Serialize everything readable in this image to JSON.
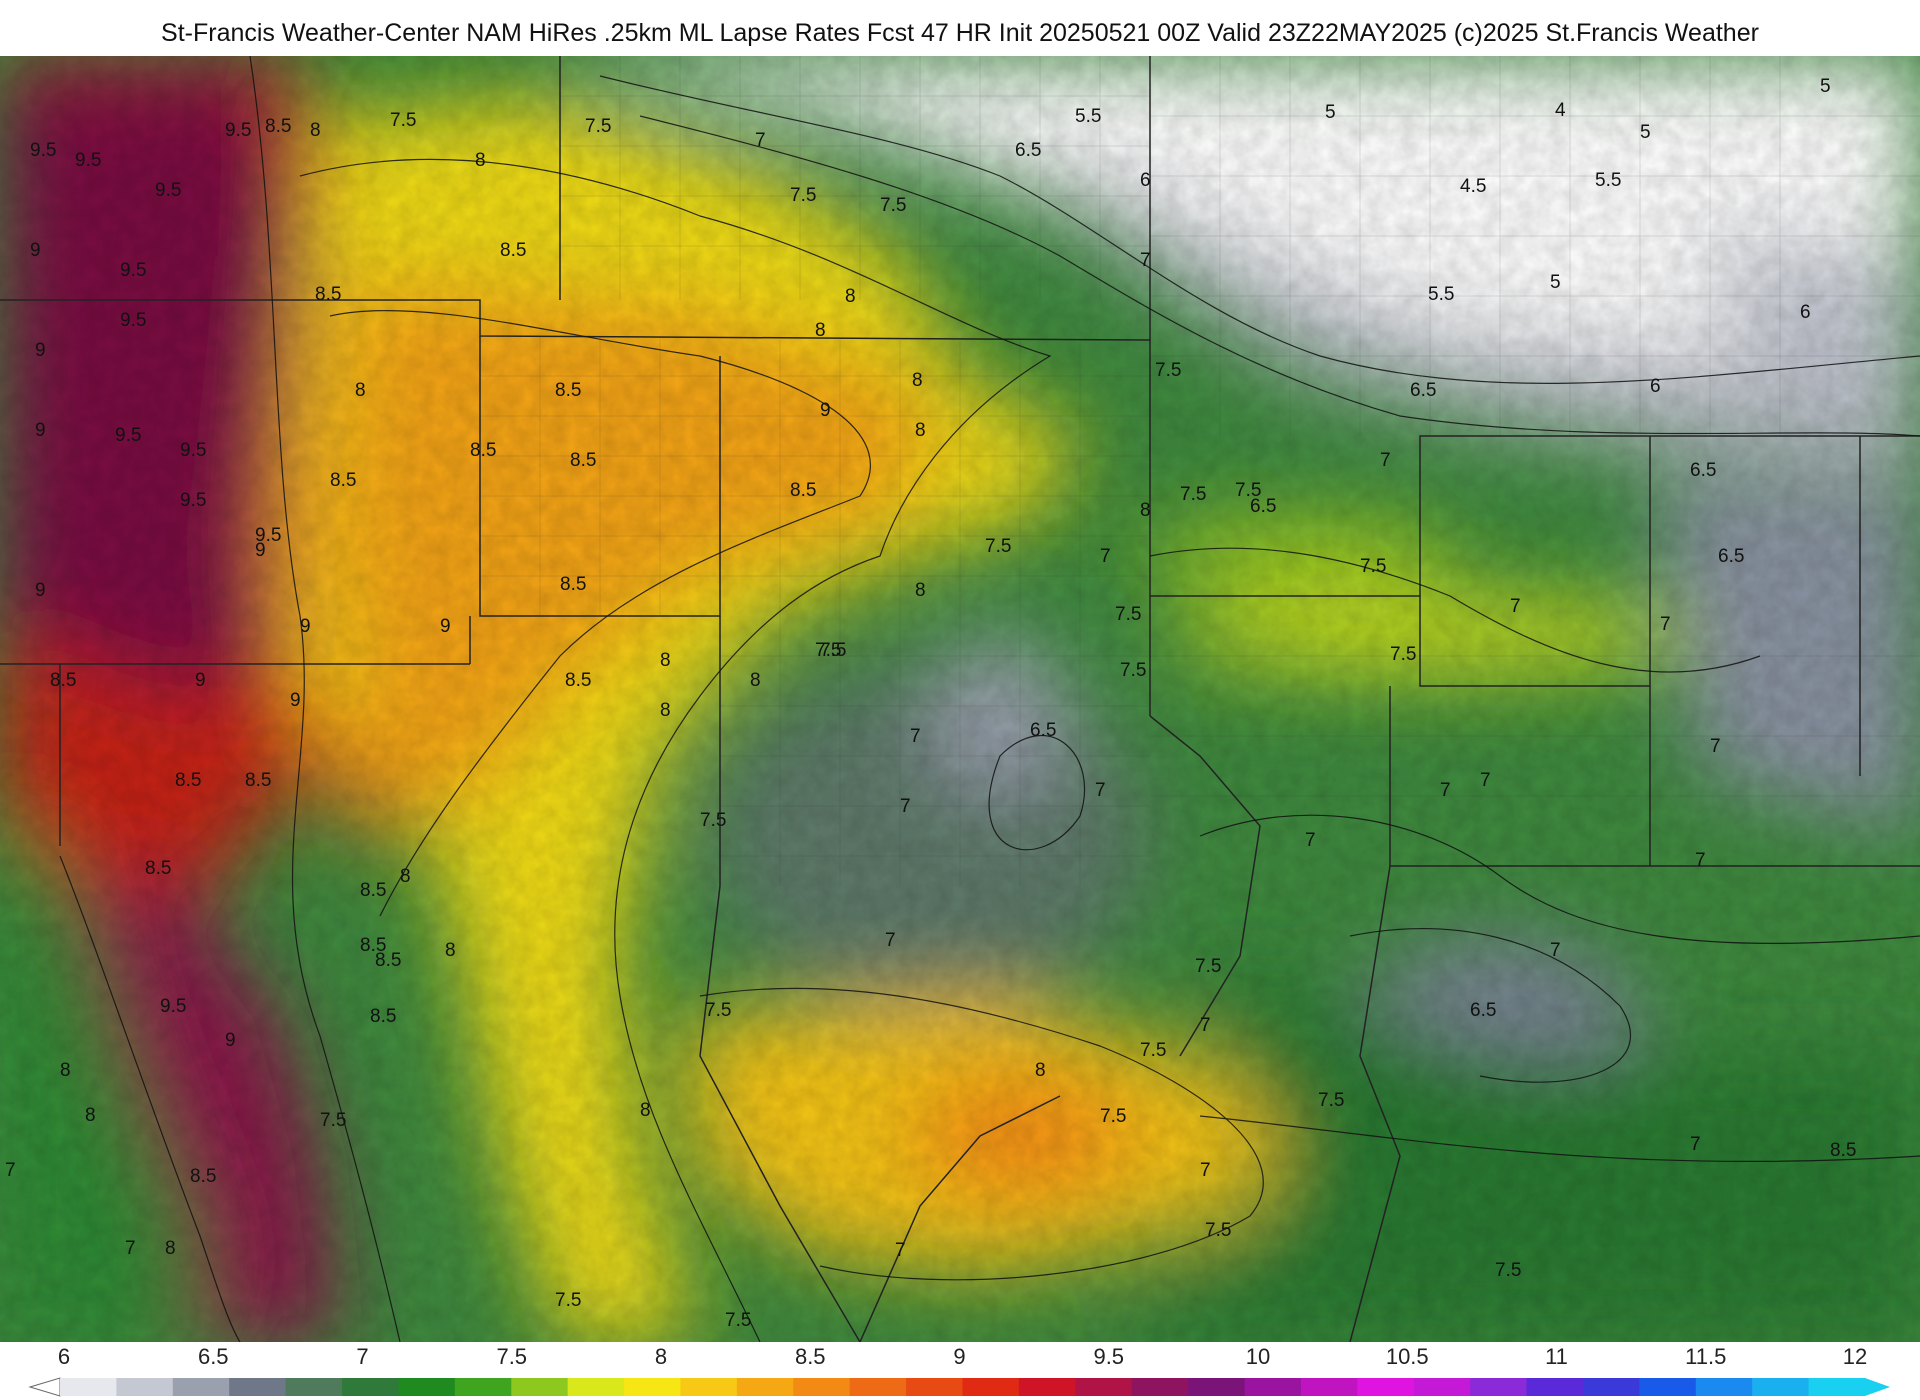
{
  "title": "St-Francis Weather-Center NAM HiRes .25km ML Lapse Rates  Fcst 47 HR Init 20250521 00Z  Valid 23Z22MAY2025    (c)2025 St.Francis Weather",
  "colorbar": {
    "ticks": [
      "6",
      "6.5",
      "7",
      "7.5",
      "8",
      "8.5",
      "9",
      "9.5",
      "10",
      "10.5",
      "11",
      "11.5",
      "12"
    ],
    "colors": [
      "#e6e8ee",
      "#c4c8d2",
      "#9aa0ae",
      "#6f7888",
      "#4f7a5c",
      "#2f7a3a",
      "#1f8a1f",
      "#3fa520",
      "#8cc81e",
      "#d8e81a",
      "#f5e614",
      "#f7c814",
      "#f6a814",
      "#f28a14",
      "#ee6a14",
      "#e84a14",
      "#e02a14",
      "#d01428",
      "#b01446",
      "#8e1460",
      "#7a1478",
      "#9a14a0",
      "#c014c0",
      "#e014e0",
      "#c41ad8",
      "#8a2ad8",
      "#5a2ad8",
      "#3a3ad8",
      "#1a5ae8",
      "#1a8af0",
      "#1ab0f0",
      "#1ad0f0"
    ]
  },
  "contour_labels": [
    "9.5",
    "9.5",
    "9.5",
    "8.5",
    "8",
    "7.5",
    "7.5",
    "7",
    "7.5",
    "7.5",
    "5.5",
    "5",
    "4",
    "5",
    "5",
    "6.5",
    "6",
    "4.5",
    "5.5",
    "9",
    "9.5",
    "8",
    "8.5",
    "8",
    "7",
    "5.5",
    "5",
    "9.5",
    "9.5",
    "8.5",
    "8",
    "6",
    "9",
    "8",
    "8.5",
    "9",
    "8",
    "6.5",
    "6.5",
    "9.5",
    "9.5",
    "8.5",
    "8.5",
    "7.5",
    "6",
    "9",
    "9.5",
    "8.5",
    "8",
    "8.5",
    "7.5",
    "7.5",
    "7",
    "6.5",
    "9",
    "9",
    "9.5",
    "8",
    "7.5",
    "7.5",
    "7",
    "8.5",
    "8",
    "7.5",
    "7",
    "6.5",
    "9",
    "9",
    "9",
    "8",
    "7.5",
    "7.5",
    "7.5",
    "7",
    "8.5",
    "9",
    "8.5",
    "8",
    "7.5",
    "7",
    "6.5",
    "7",
    "7",
    "7",
    "7",
    "8.5",
    "8.5",
    "8",
    "7",
    "8.5",
    "8.5",
    "8",
    "7.5",
    "7",
    "7",
    "8.5",
    "8.5",
    "8",
    "7",
    "7.5",
    "9.5",
    "8.5",
    "7.5",
    "7",
    "6.5",
    "7",
    "9",
    "8",
    "8",
    "7.5",
    "7.5",
    "7",
    "8.5",
    "8",
    "7.5",
    "7.5",
    "7",
    "7",
    "8.5",
    "8",
    "7.5",
    "7.5",
    "7",
    "8",
    "7.5",
    "7",
    "7.5",
    "7"
  ],
  "map_regions": {
    "west_high": "9.5",
    "texas_low": "6.5",
    "gulf_coast": "7.5",
    "northeast_low": "4.5"
  }
}
